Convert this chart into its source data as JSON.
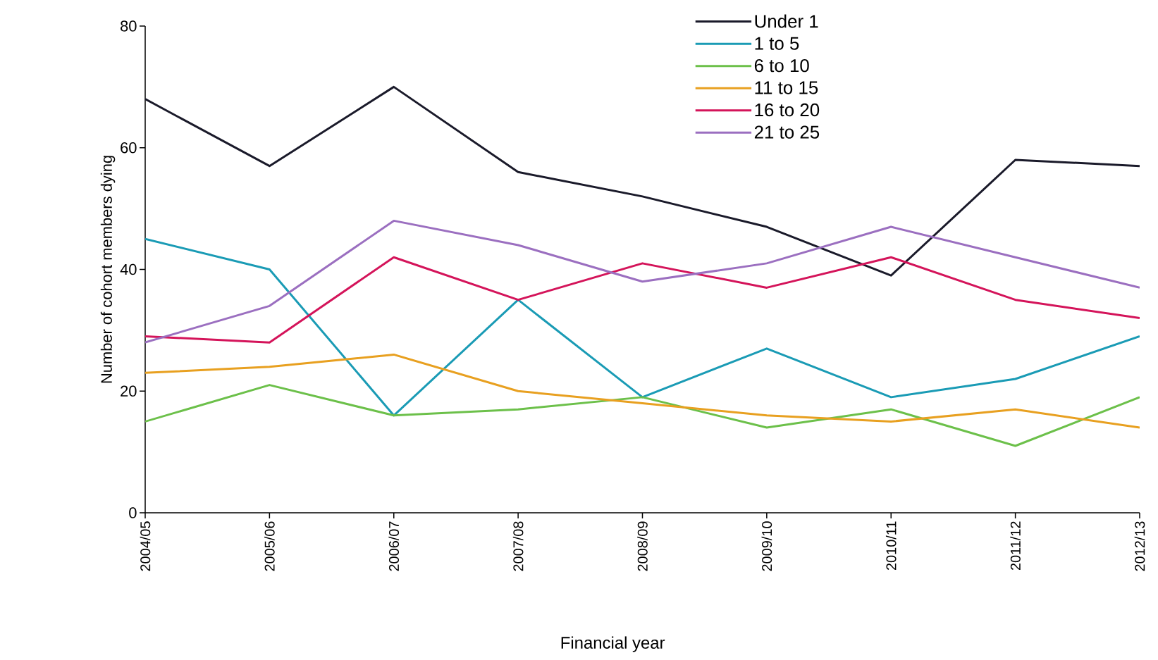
{
  "chart_data": {
    "type": "line",
    "xlabel": "Financial year",
    "ylabel": "Number of cohort members dying",
    "categories": [
      "2004/05",
      "2005/06",
      "2006/07",
      "2007/08",
      "2008/09",
      "2009/10",
      "2010/11",
      "2011/12",
      "2012/13"
    ],
    "ylim": [
      0,
      80
    ],
    "yticks": [
      0,
      20,
      40,
      60,
      80
    ],
    "grid": false,
    "legend": "top",
    "marker": "none",
    "line_style": "solid",
    "series": [
      {
        "name": "Under 1",
        "color": "#1a1a2a",
        "values": [
          68,
          57,
          70,
          56,
          52,
          47,
          39,
          58,
          57
        ]
      },
      {
        "name": "1 to 5",
        "color": "#1a9bb5",
        "values": [
          45,
          40,
          16,
          35,
          19,
          27,
          19,
          22,
          29
        ]
      },
      {
        "name": "6 to 10",
        "color": "#6cc04a",
        "values": [
          15,
          21,
          16,
          17,
          19,
          14,
          17,
          11,
          19
        ]
      },
      {
        "name": "11 to 15",
        "color": "#e8a020",
        "values": [
          23,
          24,
          26,
          20,
          18,
          16,
          15,
          17,
          14
        ]
      },
      {
        "name": "16 to 20",
        "color": "#d4145a",
        "values": [
          29,
          28,
          42,
          35,
          41,
          37,
          42,
          35,
          32
        ]
      },
      {
        "name": "21 to 25",
        "color": "#9b6fc0",
        "values": [
          28,
          34,
          48,
          44,
          38,
          41,
          47,
          42,
          37
        ]
      }
    ]
  }
}
